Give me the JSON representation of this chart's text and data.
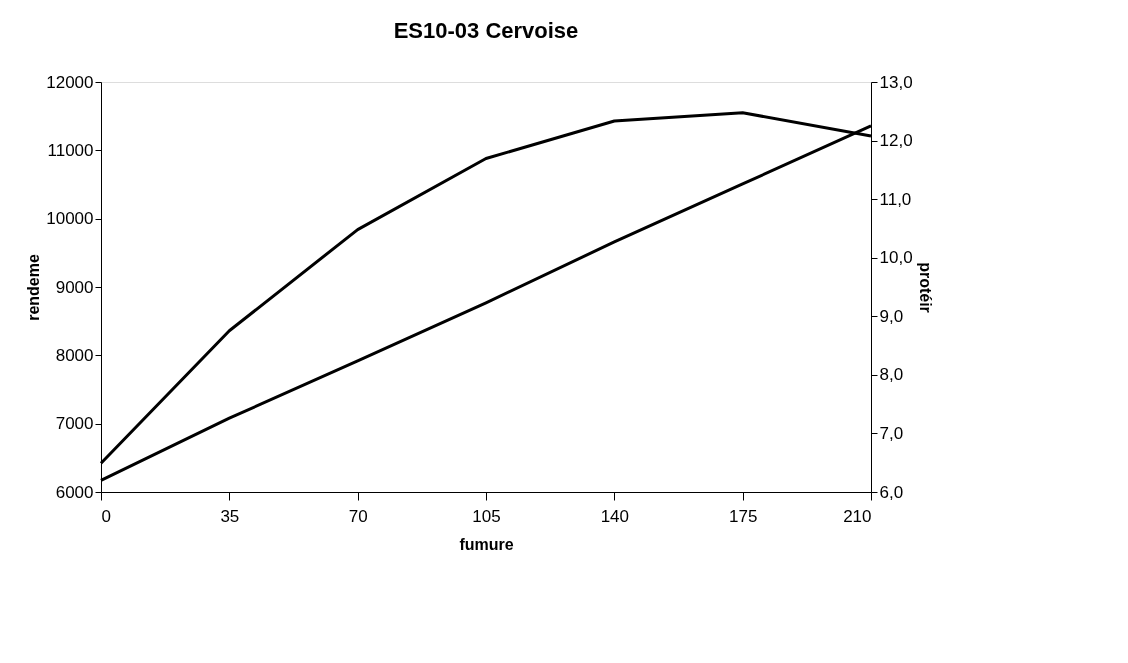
{
  "chart_data": {
    "type": "line",
    "title": "ES10-03 Cervoise",
    "xlabel": "fumure",
    "ylabel": "rendeme",
    "y2label": "protéir",
    "x": [
      0,
      35,
      70,
      105,
      140,
      175,
      210
    ],
    "series": [
      {
        "color": "#000000",
        "values": [
          6420,
          8360,
          9840,
          10880,
          11430,
          11550,
          11210
        ]
      },
      {
        "color": "#000000",
        "axis": "y2",
        "values": [
          6.2,
          7.26,
          8.24,
          9.23,
          10.27,
          11.26,
          12.25
        ]
      }
    ],
    "xlim": [
      0,
      210
    ],
    "xticks": [
      0,
      35,
      70,
      105,
      140,
      175,
      210
    ],
    "ylim": [
      6000,
      12000
    ],
    "yticks": [
      6000,
      7000,
      8000,
      9000,
      10000,
      11000,
      12000
    ],
    "y2lim": [
      6,
      13
    ],
    "y2ticks": [
      {
        "value": 6,
        "label": "6,0"
      },
      {
        "value": 7,
        "label": "7,0"
      },
      {
        "value": 8,
        "label": "8,0"
      },
      {
        "value": 9,
        "label": "9,0"
      },
      {
        "value": 10,
        "label": "10,0"
      },
      {
        "value": 11,
        "label": "11,0"
      },
      {
        "value": 12,
        "label": "12,0"
      },
      {
        "value": 13,
        "label": "13,0"
      }
    ],
    "grid": false,
    "legend": false,
    "marker": "none",
    "line_style": "solid"
  }
}
